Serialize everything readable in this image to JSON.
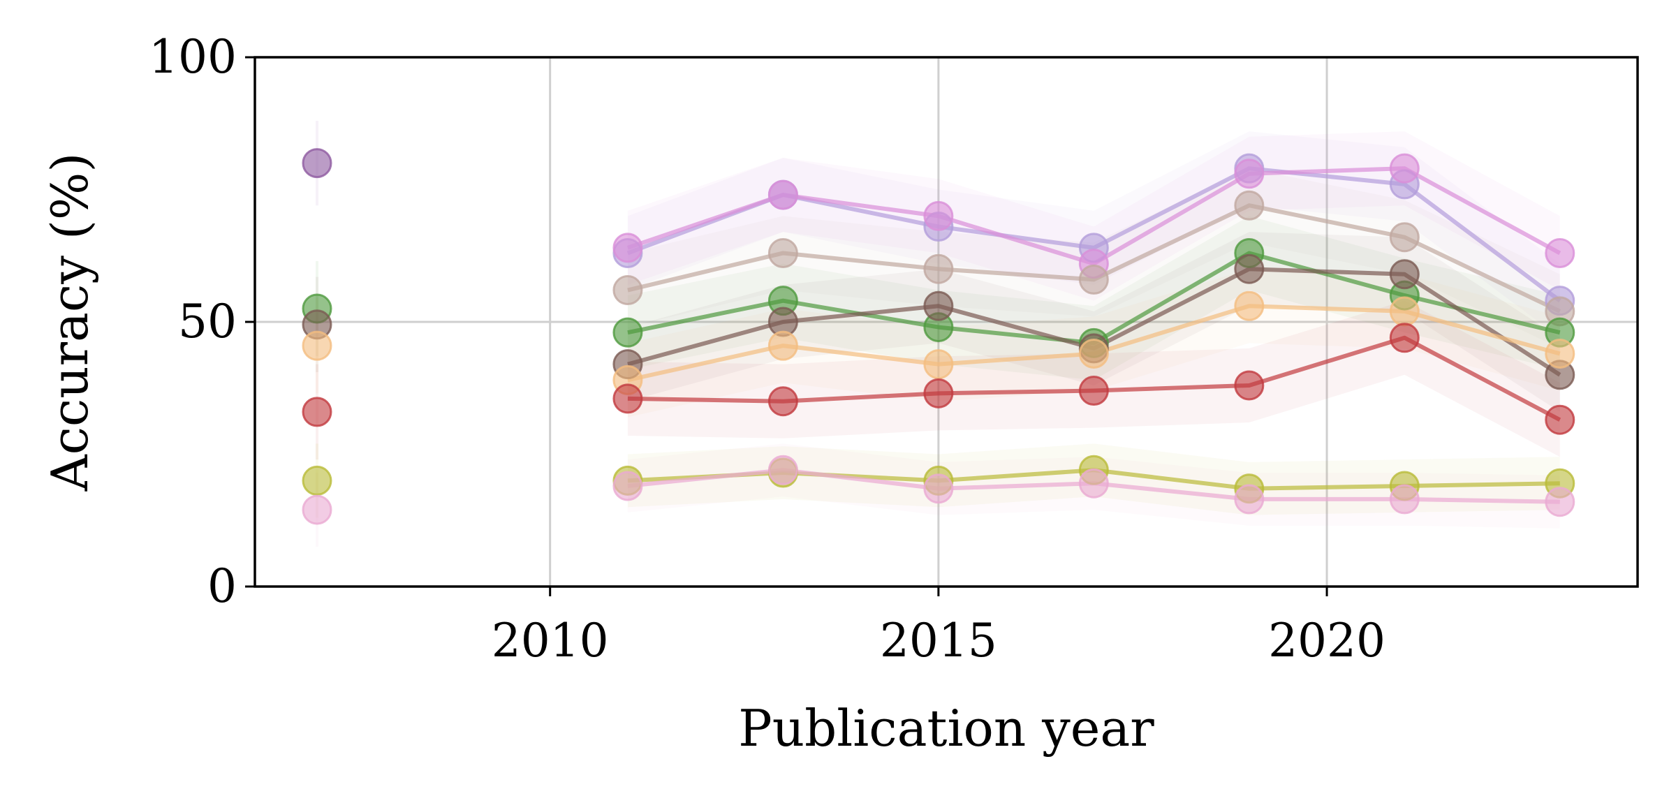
{
  "chart_data": {
    "type": "line",
    "title": "",
    "xlabel": "Publication year",
    "ylabel": "Accuracy (%)",
    "xlim": [
      2006.2,
      2024
    ],
    "ylim": [
      0,
      100
    ],
    "xticks": [
      2010,
      2015,
      2020
    ],
    "yticks": [
      0,
      50,
      100
    ],
    "grid": true,
    "legend": "none",
    "x": [
      2011,
      2013,
      2015,
      2017,
      2019,
      2021,
      2023
    ],
    "reference_x": 2007,
    "series": [
      {
        "color": "#8e5aa0",
        "reference": 80,
        "values": [
          null,
          null,
          null,
          null,
          null,
          null,
          null
        ],
        "band": 6
      },
      {
        "color": "#b39ddb",
        "reference": null,
        "values": [
          63,
          74,
          68,
          64,
          79,
          76,
          54
        ],
        "band": 7
      },
      {
        "color": "#da8ed8",
        "reference": null,
        "values": [
          64,
          74,
          70,
          61,
          78,
          79,
          63
        ],
        "band": 7
      },
      {
        "color": "#c0a8a0",
        "reference": null,
        "values": [
          56,
          63,
          60,
          58,
          72,
          66,
          52
        ],
        "band": 7
      },
      {
        "color": "#4f9a3e",
        "reference": 52.5,
        "values": [
          48,
          54,
          49,
          46,
          63,
          55,
          48
        ],
        "band": 7
      },
      {
        "color": "#7b5a52",
        "reference": 49.5,
        "values": [
          42,
          50,
          53,
          45,
          60,
          59,
          40
        ],
        "band": 7
      },
      {
        "color": "#f4bd7f",
        "reference": 45.5,
        "values": [
          39,
          45.5,
          42,
          44,
          53,
          52,
          44
        ],
        "band": 7
      },
      {
        "color": "#c23a3e",
        "reference": 33,
        "values": [
          35.5,
          35,
          36.5,
          37,
          38,
          47,
          31.5
        ],
        "band": 7
      },
      {
        "color": "#b9bb38",
        "reference": 20,
        "values": [
          20,
          21.5,
          20,
          22,
          18.5,
          19,
          19.5
        ],
        "band": 5
      },
      {
        "color": "#eaaad2",
        "reference": 14.5,
        "values": [
          19,
          22,
          18.5,
          19.5,
          16.5,
          16.5,
          16
        ],
        "band": 5
      }
    ]
  }
}
